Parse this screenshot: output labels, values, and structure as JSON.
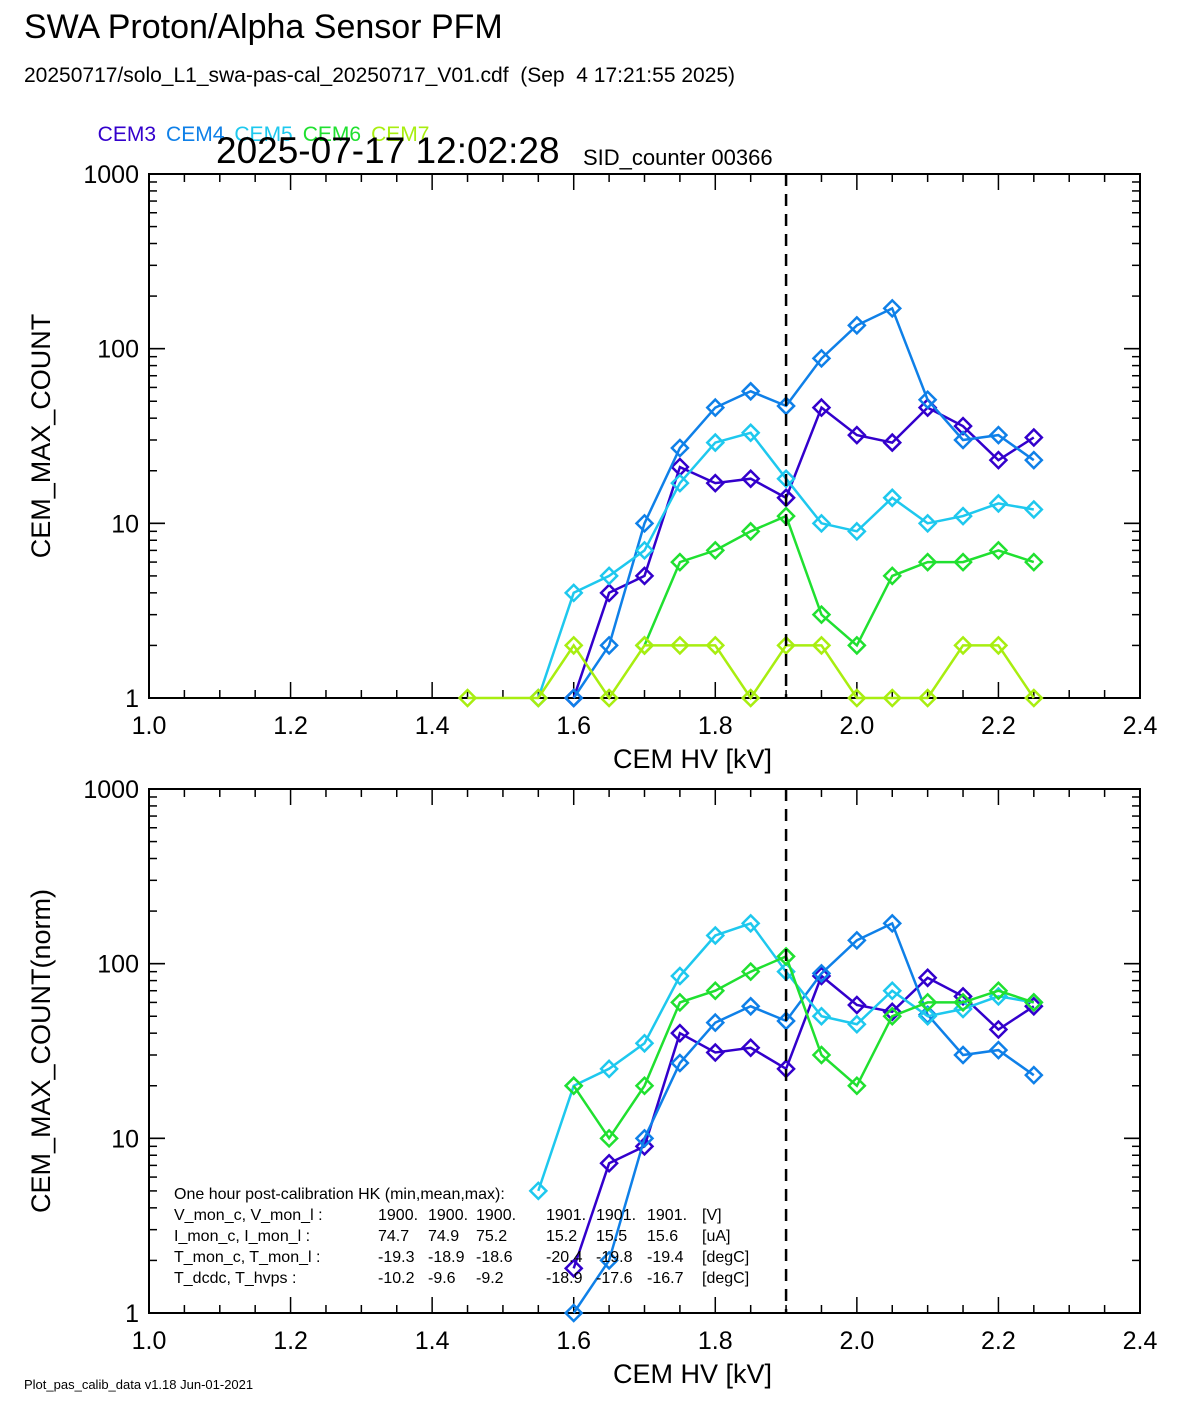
{
  "title": "SWA Proton/Alpha Sensor PFM",
  "file_line": "20250717/solo_L1_swa-pas-cal_20250717_V01.cdf  (Sep  4 17:21:55 2025)",
  "timestamp": "2025-07-17 12:02:28",
  "sid_counter": "SID_counter 00366",
  "footer": "Plot_pas_calib_data v1.18 Jun-01-2021",
  "colors": {
    "CEM3": "#3300cc",
    "CEM4": "#0f80e8",
    "CEM5": "#1ec8ee",
    "CEM6": "#20e030",
    "CEM7": "#a8ee10",
    "axes": "#000000",
    "background": "#ffffff"
  },
  "legend": [
    "CEM3",
    "CEM4",
    "CEM5",
    "CEM6",
    "CEM7"
  ],
  "hk_box": {
    "title": "One hour post-calibration HK (min,mean,max):",
    "rows": [
      {
        "name": "V_mon_c, V_mon_l :",
        "c": [
          "1900.",
          "1900.",
          "1900."
        ],
        "l": [
          "1901.",
          "1901.",
          "1901."
        ],
        "unit": "[V]"
      },
      {
        "name": "I_mon_c,  I_mon_l :",
        "c": [
          "74.7",
          "74.9",
          "75.2"
        ],
        "l": [
          "15.2",
          "15.5",
          "15.6"
        ],
        "unit": "[uA]"
      },
      {
        "name": "T_mon_c, T_mon_l :",
        "c": [
          "-19.3",
          "-18.9",
          "-18.6"
        ],
        "l": [
          "-20.4",
          "-19.8",
          "-19.4"
        ],
        "unit": "[degC]"
      },
      {
        "name": "T_dcdc,    T_hvps :",
        "c": [
          "-10.2",
          "-9.6",
          "-9.2"
        ],
        "l": [
          "-18.9",
          "-17.6",
          "-16.7"
        ],
        "unit": "[degC]"
      }
    ]
  },
  "chart_data": [
    {
      "type": "line",
      "xlabel": "CEM HV [kV]",
      "ylabel": "CEM_MAX_COUNT",
      "xlim": [
        1.0,
        2.4
      ],
      "ylim": [
        1,
        1000
      ],
      "yscale": "log",
      "xticks": [
        "1.0",
        "1.2",
        "1.4",
        "1.6",
        "1.8",
        "2.0",
        "2.2",
        "2.4"
      ],
      "yticks": [
        "1",
        "10",
        "100",
        "1000"
      ],
      "vline": 1.9,
      "marker": "diamond",
      "series": [
        {
          "name": "CEM3",
          "x": [
            1.6,
            1.65,
            1.7,
            1.75,
            1.8,
            1.85,
            1.9,
            1.95,
            2.0,
            2.05,
            2.1,
            2.15,
            2.2,
            2.25
          ],
          "y": [
            1,
            4,
            5,
            21,
            17,
            18,
            14,
            46,
            32,
            29,
            46,
            36,
            23,
            31
          ]
        },
        {
          "name": "CEM4",
          "x": [
            1.6,
            1.65,
            1.7,
            1.75,
            1.8,
            1.85,
            1.9,
            1.95,
            2.0,
            2.05,
            2.1,
            2.15,
            2.2,
            2.25
          ],
          "y": [
            1,
            2,
            10,
            27,
            46,
            57,
            47,
            88,
            136,
            170,
            51,
            30,
            32,
            23
          ]
        },
        {
          "name": "CEM5",
          "x": [
            1.55,
            1.6,
            1.65,
            1.7,
            1.75,
            1.8,
            1.85,
            1.9,
            1.95,
            2.0,
            2.05,
            2.1,
            2.15,
            2.2,
            2.25
          ],
          "y": [
            1,
            4,
            5,
            7,
            17,
            29,
            33,
            18,
            10,
            9,
            14,
            10,
            11,
            13,
            12
          ]
        },
        {
          "name": "CEM6",
          "x": [
            1.7,
            1.75,
            1.8,
            1.85,
            1.9,
            1.95,
            2.0,
            2.05,
            2.1,
            2.15,
            2.2,
            2.25
          ],
          "y": [
            2,
            6,
            7,
            9,
            11,
            3,
            2,
            5,
            6,
            6,
            7,
            6
          ]
        },
        {
          "name": "CEM7",
          "x": [
            1.45,
            1.55,
            1.6,
            1.65,
            1.7,
            1.75,
            1.8,
            1.85,
            1.9,
            1.95,
            2.0,
            2.05,
            2.1,
            2.15,
            2.2,
            2.25
          ],
          "y": [
            1,
            1,
            2,
            1,
            2,
            2,
            2,
            1,
            2,
            2,
            1,
            1,
            1,
            2,
            2,
            1
          ]
        }
      ]
    },
    {
      "type": "line",
      "xlabel": "CEM HV [kV]",
      "ylabel": "CEM_MAX_COUNT(norm)",
      "xlim": [
        1.0,
        2.4
      ],
      "ylim": [
        1,
        1000
      ],
      "yscale": "log",
      "xticks": [
        "1.0",
        "1.2",
        "1.4",
        "1.6",
        "1.8",
        "2.0",
        "2.2",
        "2.4"
      ],
      "yticks": [
        "1",
        "10",
        "100",
        "1000"
      ],
      "vline": 1.9,
      "marker": "diamond",
      "series": [
        {
          "name": "CEM3",
          "x": [
            1.6,
            1.65,
            1.7,
            1.75,
            1.8,
            1.85,
            1.9,
            1.95,
            2.0,
            2.05,
            2.1,
            2.15,
            2.2,
            2.25
          ],
          "y": [
            1.8,
            7.2,
            9,
            40,
            31,
            33,
            25,
            85,
            58,
            53,
            83,
            65,
            42,
            57
          ]
        },
        {
          "name": "CEM4",
          "x": [
            1.6,
            1.65,
            1.7,
            1.75,
            1.8,
            1.85,
            1.9,
            1.95,
            2.0,
            2.05,
            2.1,
            2.15,
            2.2,
            2.25
          ],
          "y": [
            1,
            2,
            10,
            27,
            46,
            57,
            47,
            88,
            136,
            170,
            51,
            30,
            32,
            23
          ]
        },
        {
          "name": "CEM5",
          "x": [
            1.55,
            1.6,
            1.65,
            1.7,
            1.75,
            1.8,
            1.85,
            1.9,
            1.95,
            2.0,
            2.05,
            2.1,
            2.15,
            2.2,
            2.25
          ],
          "y": [
            5,
            20,
            25,
            35,
            85,
            145,
            170,
            90,
            50,
            45,
            70,
            50,
            55,
            65,
            60
          ]
        },
        {
          "name": "CEM6",
          "x": [
            1.6,
            1.65,
            1.7,
            1.75,
            1.8,
            1.85,
            1.9,
            1.95,
            2.0,
            2.05,
            2.1,
            2.15,
            2.2,
            2.25
          ],
          "y": [
            20,
            10,
            20,
            60,
            70,
            90,
            110,
            30,
            20,
            50,
            60,
            60,
            70,
            60
          ]
        }
      ]
    }
  ]
}
